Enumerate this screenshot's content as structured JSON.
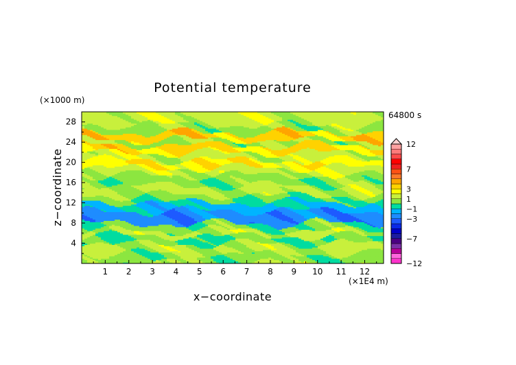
{
  "chart_data": {
    "type": "heatmap",
    "title": "Potential temperature",
    "xlabel": "x−coordinate",
    "ylabel": "z−coordinate",
    "x_units": "(×1E4 m)",
    "y_units": "(×1000 m)",
    "time_label": "64800 s",
    "xlim": [
      0,
      12.8
    ],
    "ylim": [
      0,
      30
    ],
    "x_ticks": [
      {
        "v": 1,
        "label": "1"
      },
      {
        "v": 2,
        "label": "2"
      },
      {
        "v": 3,
        "label": "3"
      },
      {
        "v": 4,
        "label": "4"
      },
      {
        "v": 5,
        "label": "5"
      },
      {
        "v": 6,
        "label": "6"
      },
      {
        "v": 7,
        "label": "7"
      },
      {
        "v": 8,
        "label": "8"
      },
      {
        "v": 9,
        "label": "9"
      },
      {
        "v": 10,
        "label": "10"
      },
      {
        "v": 11,
        "label": "11"
      },
      {
        "v": 12,
        "label": "12"
      }
    ],
    "y_ticks": [
      {
        "v": 4,
        "label": "4"
      },
      {
        "v": 8,
        "label": "8"
      },
      {
        "v": 12,
        "label": "12"
      },
      {
        "v": 16,
        "label": "16"
      },
      {
        "v": 20,
        "label": "20"
      },
      {
        "v": 24,
        "label": "24"
      },
      {
        "v": 28,
        "label": "28"
      }
    ],
    "colorbar": {
      "levels": [
        -12,
        -11,
        -10,
        -9,
        -8,
        -7,
        -6,
        -5,
        -4,
        -3,
        -2,
        -1,
        0,
        1,
        2,
        3,
        4,
        5,
        6,
        7,
        8,
        9,
        10,
        11,
        12
      ],
      "colors": [
        "#ff33cc",
        "#ff66dd",
        "#b8009a",
        "#7a2fa8",
        "#4b0082",
        "#1c1ca0",
        "#0000c8",
        "#0a28e6",
        "#1e5aff",
        "#1e8cff",
        "#00b4ff",
        "#00dca0",
        "#8ce640",
        "#c8f03c",
        "#ffff00",
        "#ffd200",
        "#ffa500",
        "#ff7828",
        "#ff5014",
        "#f01e1e",
        "#ff0000",
        "#ff4a4a",
        "#ff7a7a",
        "#ffa0a0"
      ],
      "extend_max": true,
      "labels": [
        {
          "v": 12,
          "label": "12"
        },
        {
          "v": 7,
          "label": "7"
        },
        {
          "v": 3,
          "label": "3"
        },
        {
          "v": 1,
          "label": "1"
        },
        {
          "v": -1,
          "label": "−1"
        },
        {
          "v": -3,
          "label": "−3"
        },
        {
          "v": -7,
          "label": "−7"
        },
        {
          "v": -12,
          "label": "−12"
        }
      ]
    },
    "field_description_bands": [
      {
        "z": [
          0,
          2
        ],
        "value": 0.3
      },
      {
        "z": [
          2,
          4
        ],
        "value": 1.2
      },
      {
        "z": [
          4,
          5.5
        ],
        "value": 0.0
      },
      {
        "z": [
          5.5,
          6.6
        ],
        "value": 1.3
      },
      {
        "z": [
          6.6,
          8
        ],
        "value": 0.2
      },
      {
        "z": [
          8,
          10.5
        ],
        "value": -2.6
      },
      {
        "z": [
          10.5,
          12.2
        ],
        "value": -1.2
      },
      {
        "z": [
          12.2,
          13.5
        ],
        "value": 0.1
      },
      {
        "z": [
          13.5,
          15.5
        ],
        "value": 1.2
      },
      {
        "z": [
          15.5,
          17.5
        ],
        "value": 0.4
      },
      {
        "z": [
          17.5,
          19
        ],
        "value": 1.5
      },
      {
        "z": [
          19,
          20.5
        ],
        "value": 2.8
      },
      {
        "z": [
          20.5,
          22
        ],
        "value": 1.4
      },
      {
        "z": [
          22,
          23.5
        ],
        "value": 3.2
      },
      {
        "z": [
          23.5,
          24.5
        ],
        "value": 0.8
      },
      {
        "z": [
          24.5,
          26
        ],
        "value": 3.6
      },
      {
        "z": [
          26,
          27.5
        ],
        "value": 0.6
      },
      {
        "z": [
          27.5,
          30
        ],
        "value": 1.5
      }
    ]
  }
}
